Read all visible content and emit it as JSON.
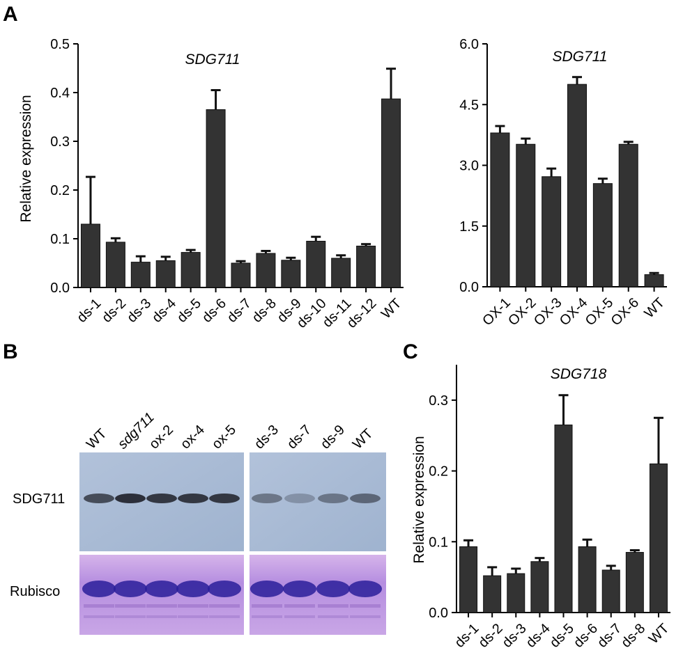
{
  "panels": {
    "a": "A",
    "b": "B",
    "c": "C"
  },
  "chart_data": [
    {
      "id": "A-left",
      "type": "bar",
      "title": "SDG711",
      "xlabel": "",
      "ylabel": "Relative expression",
      "ylim": [
        0,
        0.5
      ],
      "yticks": [
        "0.0",
        "0.1",
        "0.2",
        "0.3",
        "0.4",
        "0.5"
      ],
      "categories": [
        "ds-1",
        "ds-2",
        "ds-3",
        "ds-4",
        "ds-5",
        "ds-6",
        "ds-7",
        "ds-8",
        "ds-9",
        "ds-10",
        "ds-11",
        "ds-12",
        "WT"
      ],
      "values": [
        0.13,
        0.093,
        0.052,
        0.055,
        0.072,
        0.365,
        0.05,
        0.07,
        0.056,
        0.095,
        0.06,
        0.085,
        0.387
      ],
      "errors": [
        0.097,
        0.008,
        0.012,
        0.008,
        0.005,
        0.04,
        0.004,
        0.005,
        0.005,
        0.009,
        0.006,
        0.004,
        0.062
      ]
    },
    {
      "id": "A-right",
      "type": "bar",
      "title": "SDG711",
      "xlabel": "",
      "ylabel": "",
      "ylim": [
        0,
        6
      ],
      "yticks": [
        "0.0",
        "1.5",
        "3.0",
        "4.5",
        "6.0"
      ],
      "categories": [
        "OX-1",
        "OX-2",
        "OX-3",
        "OX-4",
        "OX-5",
        "OX-6",
        "WT"
      ],
      "values": [
        3.8,
        3.52,
        2.72,
        5.0,
        2.55,
        3.52,
        0.3
      ],
      "errors": [
        0.17,
        0.14,
        0.2,
        0.18,
        0.12,
        0.06,
        0.04
      ]
    },
    {
      "id": "C",
      "type": "bar",
      "title": "SDG718",
      "xlabel": "",
      "ylabel": "Relative expression",
      "ylim": [
        0,
        0.35
      ],
      "yticks": [
        "0.0",
        "0.1",
        "0.2",
        "0.3"
      ],
      "categories": [
        "ds-1",
        "ds-2",
        "ds-3",
        "ds-4",
        "ds-5",
        "ds-6",
        "ds-7",
        "ds-8",
        "WT"
      ],
      "values": [
        0.093,
        0.052,
        0.055,
        0.072,
        0.265,
        0.093,
        0.06,
        0.085,
        0.21
      ],
      "errors": [
        0.009,
        0.012,
        0.007,
        0.005,
        0.042,
        0.01,
        0.006,
        0.003,
        0.065
      ]
    }
  ],
  "blot": {
    "lanes_left": [
      "WT",
      "sdg711",
      "ox-2",
      "ox-4",
      "ox-5"
    ],
    "lanes_right": [
      "ds-3",
      "ds-7",
      "ds-9",
      "WT"
    ],
    "rows": [
      "SDG711",
      "Rubisco"
    ],
    "band_intensity_left": [
      0.8,
      1.0,
      0.95,
      0.95,
      0.95
    ],
    "band_intensity_right": [
      0.5,
      0.3,
      0.5,
      0.6
    ],
    "colors": {
      "membrane": "#a9bcd6",
      "band": "#2c2f3a",
      "gel": "#b68fd8",
      "gel_band": "#2a1f9a"
    }
  }
}
